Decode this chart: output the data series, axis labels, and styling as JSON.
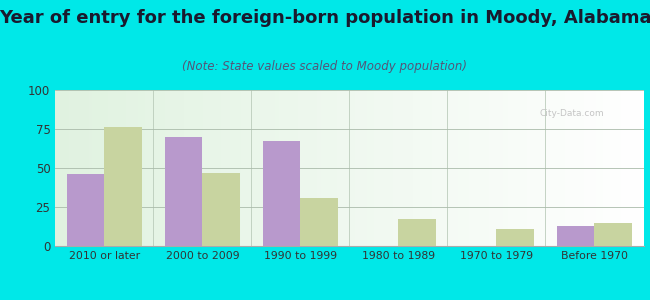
{
  "title": "Year of entry for the foreign-born population in Moody, Alabama",
  "subtitle": "(Note: State values scaled to Moody population)",
  "categories": [
    "2010 or later",
    "2000 to 2009",
    "1990 to 1999",
    "1980 to 1989",
    "1970 to 1979",
    "Before 1970"
  ],
  "moody_values": [
    46,
    70,
    67,
    0,
    0,
    13
  ],
  "alabama_values": [
    76,
    47,
    31,
    17,
    11,
    15
  ],
  "moody_color": "#b899cc",
  "alabama_color": "#c8d4a0",
  "background_outer": "#00e8e8",
  "ylim": [
    0,
    100
  ],
  "yticks": [
    0,
    25,
    50,
    75,
    100
  ],
  "bar_width": 0.38,
  "title_fontsize": 13,
  "subtitle_fontsize": 8.5,
  "title_color": "#1a1a2e",
  "subtitle_color": "#555577"
}
